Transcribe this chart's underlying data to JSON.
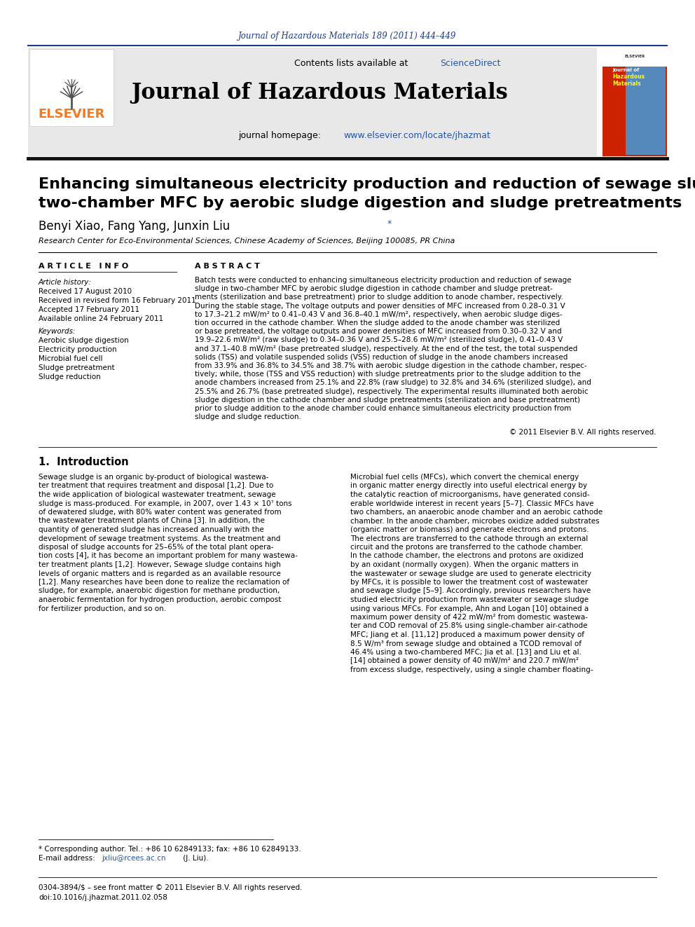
{
  "page_title_journal": "Journal of Hazardous Materials 189 (2011) 444–449",
  "journal_name": "Journal of Hazardous Materials",
  "contents_line": "Contents lists available at ScienceDirect",
  "homepage_text": "journal homepage: www.elsevier.com/locate/jhazmat",
  "paper_title_line1": "Enhancing simultaneous electricity production and reduction of sewage sludge in",
  "paper_title_line2": "two-chamber MFC by aerobic sludge digestion and sludge pretreatments",
  "authors": "Benyi Xiao, Fang Yang, Junxin Liu",
  "affiliation": "Research Center for Eco-Environmental Sciences, Chinese Academy of Sciences, Beijing 100085, PR China",
  "article_info_header": "A R T I C L E   I N F O",
  "abstract_header": "A B S T R A C T",
  "article_history_label": "Article history:",
  "received": "Received 17 August 2010",
  "received_revised": "Received in revised form 16 February 2011",
  "accepted": "Accepted 17 February 2011",
  "available": "Available online 24 February 2011",
  "keywords_label": "Keywords:",
  "keywords": [
    "Aerobic sludge digestion",
    "Electricity production",
    "Microbial fuel cell",
    "Sludge pretreatment",
    "Sludge reduction"
  ],
  "abstract_lines": [
    "Batch tests were conducted to enhancing simultaneous electricity production and reduction of sewage",
    "sludge in two-chamber MFC by aerobic sludge digestion in cathode chamber and sludge pretreat-",
    "ments (sterilization and base pretreatment) prior to sludge addition to anode chamber, respectively.",
    "During the stable stage, The voltage outputs and power densities of MFC increased from 0.28–0.31 V",
    "to 17.3–21.2 mW/m² to 0.41–0.43 V and 36.8–40.1 mW/m², respectively, when aerobic sludge diges-",
    "tion occurred in the cathode chamber. When the sludge added to the anode chamber was sterilized",
    "or base pretreated, the voltage outputs and power densities of MFC increased from 0.30–0.32 V and",
    "19.9–22.6 mW/m² (raw sludge) to 0.34–0.36 V and 25.5–28.6 mW/m² (sterilized sludge), 0.41–0.43 V",
    "and 37.1–40.8 mW/m² (base pretreated sludge), respectively. At the end of the test, the total suspended",
    "solids (TSS) and volatile suspended solids (VSS) reduction of sludge in the anode chambers increased",
    "from 33.9% and 36.8% to 34.5% and 38.7% with aerobic sludge digestion in the cathode chamber, respec-",
    "tively; while, those (TSS and VSS reduction) with sludge pretreatments prior to the sludge addition to the",
    "anode chambers increased from 25.1% and 22.8% (raw sludge) to 32.8% and 34.6% (sterilized sludge), and",
    "25.5% and 26.7% (base pretreated sludge), respectively. The experimental results illuminated both aerobic",
    "sludge digestion in the cathode chamber and sludge pretreatments (sterilization and base pretreatment)",
    "prior to sludge addition to the anode chamber could enhance simultaneous electricity production from",
    "sludge and sludge reduction."
  ],
  "copyright": "© 2011 Elsevier B.V. All rights reserved.",
  "section1_header": "1.  Introduction",
  "intro_left": [
    "Sewage sludge is an organic by-product of biological wastewa-",
    "ter treatment that requires treatment and disposal [1,2]. Due to",
    "the wide application of biological wastewater treatment, sewage",
    "sludge is mass-produced. For example, in 2007, over 1.43 × 10⁷ tons",
    "of dewatered sludge, with 80% water content was generated from",
    "the wastewater treatment plants of China [3]. In addition, the",
    "quantity of generated sludge has increased annually with the",
    "development of sewage treatment systems. As the treatment and",
    "disposal of sludge accounts for 25–65% of the total plant opera-",
    "tion costs [4], it has become an important problem for many wastewa-",
    "ter treatment plants [1,2]. However, Sewage sludge contains high",
    "levels of organic matters and is regarded as an available resource",
    "[1,2]. Many researches have been done to realize the reclamation of",
    "sludge, for example, anaerobic digestion for methane production,",
    "anaerobic fermentation for hydrogen production, aerobic compost",
    "for fertilizer production, and so on."
  ],
  "intro_right": [
    "Microbial fuel cells (MFCs), which convert the chemical energy",
    "in organic matter energy directly into useful electrical energy by",
    "the catalytic reaction of microorganisms, have generated consid-",
    "erable worldwide interest in recent years [5–7]. Classic MFCs have",
    "two chambers, an anaerobic anode chamber and an aerobic cathode",
    "chamber. In the anode chamber, microbes oxidize added substrates",
    "(organic matter or biomass) and generate electrons and protons.",
    "The electrons are transferred to the cathode through an external",
    "circuit and the protons are transferred to the cathode chamber.",
    "In the cathode chamber, the electrons and protons are oxidized",
    "by an oxidant (normally oxygen). When the organic matters in",
    "the wastewater or sewage sludge are used to generate electricity",
    "by MFCs, it is possible to lower the treatment cost of wastewater",
    "and sewage sludge [5–9]. Accordingly, previous researchers have",
    "studied electricity production from wastewater or sewage sludge",
    "using various MFCs. For example, Ahn and Logan [10] obtained a",
    "maximum power density of 422 mW/m² from domestic wastewa-",
    "ter and COD removal of 25.8% using single-chamber air-cathode",
    "MFC; Jiang et al. [11,12] produced a maximum power density of",
    "8.5 W/m³ from sewage sludge and obtained a TCOD removal of",
    "46.4% using a two-chambered MFC; Jia et al. [13] and Liu et al.",
    "[14] obtained a power density of 40 mW/m² and 220.7 mW/m²",
    "from excess sludge, respectively, using a single chamber floating-"
  ],
  "footnote_star": "* Corresponding author. Tel.: +86 10 62849133; fax: +86 10 62849133.",
  "footnote_email_label": "E-mail address: ",
  "footnote_email_link": "jxliu@rcees.ac.cn",
  "footnote_email_rest": " (J. Liu).",
  "footer_line1": "0304-3894/$ – see front matter © 2011 Elsevier B.V. All rights reserved.",
  "footer_line2": "doi:10.1016/j.jhazmat.2011.02.058",
  "blue_color": "#1a3a8a",
  "link_color": "#2255aa",
  "header_bg": "#e8e8e8",
  "elsevier_orange": "#f47920"
}
